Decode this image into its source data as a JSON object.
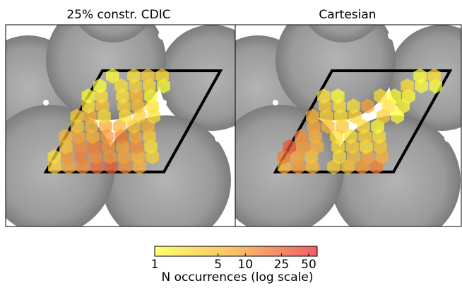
{
  "chart_data": [
    {
      "type": "hexbin",
      "title": "25% constr. CDIC",
      "x": [
        0.05,
        0.17,
        0.29,
        0.41,
        0.53,
        0.65,
        0.77,
        0.0,
        0.11,
        0.23,
        0.35,
        0.47,
        0.59,
        0.71,
        0.83,
        0.05,
        0.17,
        0.29,
        0.41,
        0.53,
        0.65,
        0.77,
        0.0,
        0.11,
        0.23,
        0.35,
        0.47,
        0.59,
        0.71,
        0.05,
        0.17,
        0.29,
        0.41,
        0.53,
        0.65,
        0.0,
        0.11,
        0.23,
        0.41,
        0.53,
        0.65,
        0.05,
        0.17,
        0.35,
        0.47,
        0.59,
        0.0,
        0.11,
        0.29,
        0.41,
        0.53,
        0.05,
        0.23,
        0.35,
        0.47,
        0.59,
        0.11,
        0.29,
        0.41,
        0.53
      ],
      "y": [
        0.05,
        0.05,
        0.05,
        0.05,
        0.05,
        0.05,
        0.05,
        0.15,
        0.15,
        0.15,
        0.15,
        0.15,
        0.15,
        0.15,
        0.15,
        0.25,
        0.25,
        0.25,
        0.25,
        0.25,
        0.25,
        0.25,
        0.35,
        0.35,
        0.35,
        0.35,
        0.35,
        0.35,
        0.35,
        0.45,
        0.45,
        0.45,
        0.45,
        0.45,
        0.45,
        0.55,
        0.55,
        0.55,
        0.55,
        0.55,
        0.55,
        0.65,
        0.65,
        0.65,
        0.65,
        0.65,
        0.75,
        0.75,
        0.75,
        0.75,
        0.75,
        0.85,
        0.85,
        0.85,
        0.85,
        0.85,
        0.95,
        0.95,
        0.95,
        0.95
      ],
      "values": [
        3,
        8,
        12,
        20,
        25,
        12,
        6,
        2,
        10,
        15,
        12,
        10,
        8,
        5,
        3,
        4,
        12,
        15,
        10,
        8,
        12,
        2,
        5,
        8,
        6,
        10,
        15,
        8,
        3,
        4,
        5,
        8,
        6,
        4,
        6,
        3,
        6,
        2,
        2,
        3,
        2,
        2,
        4,
        3,
        4,
        2,
        1,
        2,
        2,
        5,
        1,
        1,
        2,
        3,
        2,
        1,
        1,
        2,
        3,
        2
      ]
    },
    {
      "type": "hexbin",
      "title": "Cartesian",
      "x": [
        0.05,
        0.17,
        0.29,
        0.47,
        0.59,
        0.71,
        0.83,
        0.0,
        0.11,
        0.23,
        0.47,
        0.59,
        0.71,
        0.83,
        0.0,
        0.11,
        0.23,
        0.41,
        0.53,
        0.65,
        0.77,
        0.05,
        0.17,
        0.35,
        0.47,
        0.59,
        0.71,
        0.11,
        0.23,
        0.35,
        0.53,
        0.65,
        0.05,
        0.17,
        0.29,
        0.41,
        0.65,
        0.77,
        0.11,
        0.23,
        0.35,
        0.47,
        0.65,
        0.77,
        0.05,
        0.17,
        0.53,
        0.65,
        0.77,
        0.71,
        0.83,
        0.95,
        0.77,
        0.89
      ],
      "y": [
        0.05,
        0.05,
        0.05,
        0.05,
        0.05,
        0.05,
        0.05,
        0.15,
        0.15,
        0.15,
        0.15,
        0.15,
        0.15,
        0.15,
        0.25,
        0.25,
        0.25,
        0.25,
        0.25,
        0.25,
        0.25,
        0.35,
        0.35,
        0.35,
        0.35,
        0.35,
        0.35,
        0.45,
        0.45,
        0.45,
        0.45,
        0.45,
        0.55,
        0.55,
        0.55,
        0.55,
        0.55,
        0.55,
        0.65,
        0.65,
        0.65,
        0.65,
        0.65,
        0.65,
        0.75,
        0.75,
        0.75,
        0.75,
        0.75,
        0.85,
        0.85,
        0.85,
        0.95,
        0.95
      ],
      "values": [
        6,
        10,
        5,
        3,
        4,
        10,
        15,
        15,
        8,
        4,
        2,
        5,
        8,
        6,
        30,
        10,
        6,
        2,
        3,
        2,
        4,
        12,
        6,
        2,
        2,
        3,
        2,
        8,
        5,
        4,
        2,
        1,
        6,
        3,
        2,
        3,
        3,
        1,
        4,
        2,
        2,
        8,
        2,
        1,
        2,
        1,
        2,
        1,
        1,
        2,
        1,
        1,
        1,
        2
      ]
    }
  ],
  "colorbar": {
    "label": "N occurrences (log scale)",
    "log": true,
    "zlim": [
      1,
      62
    ],
    "ticks": [
      1,
      5,
      10,
      25,
      50
    ],
    "colors": [
      "#ffff33",
      "#f8a530",
      "#e8202e"
    ],
    "opacity": 0.72
  }
}
